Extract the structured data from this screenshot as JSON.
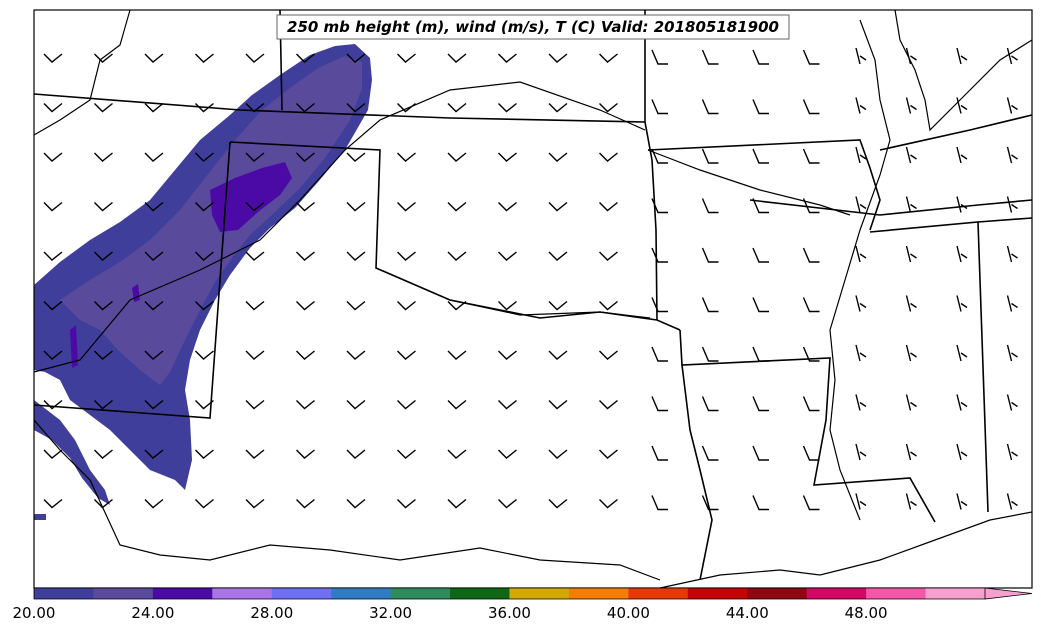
{
  "title": "250 mb height (m), wind (m/s), T (C) Valid: 201805181900",
  "colorbar": {
    "tick_labels": [
      "20.00",
      "24.00",
      "28.00",
      "32.00",
      "36.00",
      "40.00",
      "44.00",
      "48.00"
    ],
    "tick_values": [
      20,
      24,
      28,
      32,
      36,
      40,
      44,
      48
    ],
    "min": 20,
    "max": 52,
    "step": 2,
    "extend": "max",
    "colors": [
      "#3f3f9b",
      "#5a4a9c",
      "#4b0aa5",
      "#a974e6",
      "#6f6ff2",
      "#2f7cc4",
      "#2f8b5c",
      "#0e6714",
      "#d3a806",
      "#f47d07",
      "#e53a06",
      "#c40505",
      "#8f0713",
      "#d30864",
      "#f457a8",
      "#f7a0d0"
    ]
  },
  "wind_field": {
    "barb_style": "northwest-to-west light winds over plains, southwest-to-south flow over eastern states"
  },
  "shaded_region": {
    "description_colors": [
      "#3f3f9b",
      "#5a4a9c",
      "#4b0aa5"
    ]
  }
}
